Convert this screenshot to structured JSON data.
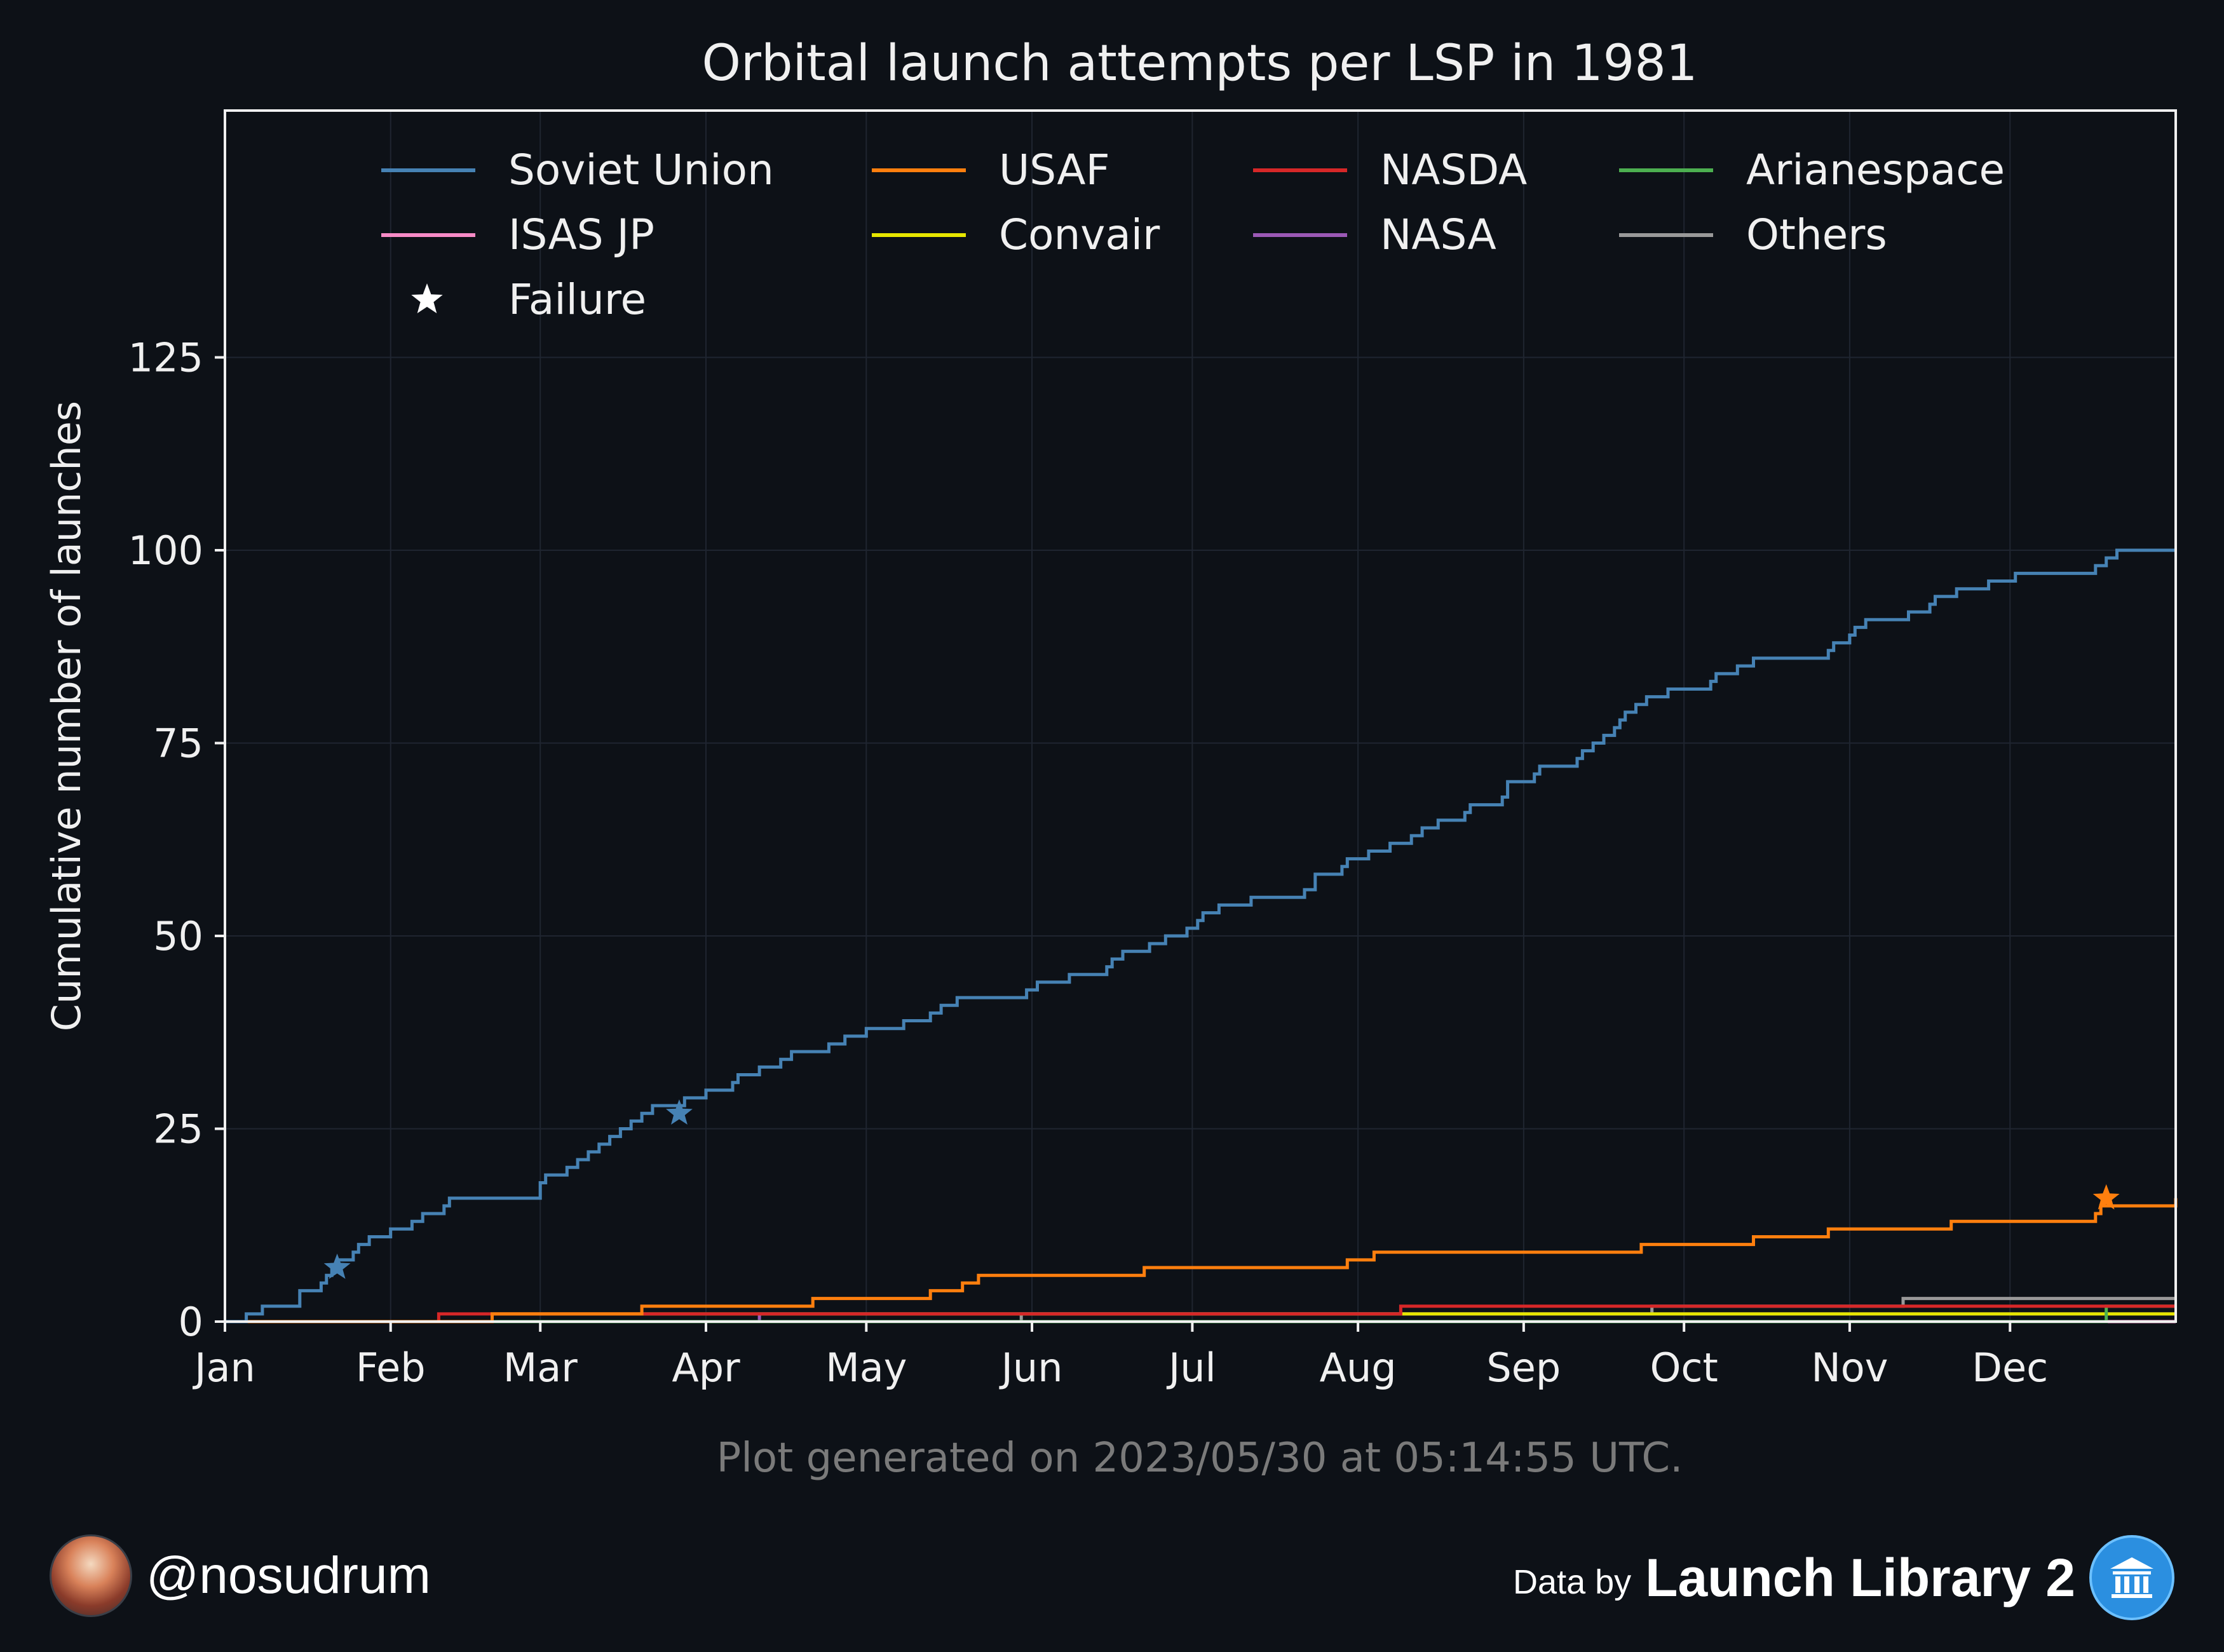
{
  "chart_data": {
    "type": "line",
    "title": "Orbital launch attempts per LSP in 1981",
    "xlabel": "",
    "ylabel": "Cumulative number of launches",
    "xlim": [
      0,
      365
    ],
    "ylim": [
      0,
      157
    ],
    "x_ticks": [
      {
        "day": 0,
        "label": "Jan"
      },
      {
        "day": 31,
        "label": "Feb"
      },
      {
        "day": 59,
        "label": "Mar"
      },
      {
        "day": 90,
        "label": "Apr"
      },
      {
        "day": 120,
        "label": "May"
      },
      {
        "day": 151,
        "label": "Jun"
      },
      {
        "day": 181,
        "label": "Jul"
      },
      {
        "day": 212,
        "label": "Aug"
      },
      {
        "day": 243,
        "label": "Sep"
      },
      {
        "day": 273,
        "label": "Oct"
      },
      {
        "day": 304,
        "label": "Nov"
      },
      {
        "day": 334,
        "label": "Dec"
      }
    ],
    "y_ticks": [
      0,
      25,
      50,
      75,
      100,
      125
    ],
    "grid": true,
    "legend_position": "top",
    "legend": [
      {
        "label": "Soviet Union",
        "color": "#4682b4"
      },
      {
        "label": "USAF",
        "color": "#ff7f0e"
      },
      {
        "label": "NASDA",
        "color": "#d62728"
      },
      {
        "label": "Arianespace",
        "color": "#4caf50"
      },
      {
        "label": "ISAS JP",
        "color": "#f78bc6"
      },
      {
        "label": "Convair",
        "color": "#e6e600"
      },
      {
        "label": "NASA",
        "color": "#9b59b6"
      },
      {
        "label": "Others",
        "color": "#999999"
      },
      {
        "label": "Failure",
        "color": "#ffffff",
        "marker": "star"
      }
    ],
    "series": [
      {
        "name": "Soviet Union",
        "color": "#4682b4",
        "x": [
          0,
          4,
          7,
          14,
          18,
          19,
          20,
          21,
          24,
          25,
          27,
          29,
          31,
          35,
          37,
          41,
          42,
          49,
          59,
          60,
          64,
          66,
          68,
          70,
          72,
          74,
          76,
          78,
          79,
          80,
          82,
          86,
          90,
          95,
          96,
          100,
          104,
          106,
          111,
          113,
          116,
          120,
          126,
          127,
          132,
          134,
          137,
          138,
          140,
          141,
          150,
          152,
          153,
          158,
          165,
          166,
          168,
          173,
          176,
          180,
          182,
          183,
          186,
          192,
          202,
          204,
          209,
          210,
          214,
          218,
          222,
          224,
          227,
          232,
          233,
          239,
          240,
          245,
          246,
          253,
          254,
          256,
          258,
          260,
          261,
          262,
          264,
          266,
          270,
          271,
          278,
          279,
          283,
          286,
          300,
          301,
          304,
          305,
          307,
          315,
          319,
          320,
          324,
          330,
          335,
          337,
          339,
          350,
          352,
          354,
          358,
          365
        ],
        "y": [
          0,
          1,
          2,
          4,
          5,
          6,
          7,
          8,
          9,
          10,
          11,
          11,
          12,
          13,
          14,
          15,
          16,
          16,
          18,
          19,
          20,
          21,
          22,
          23,
          24,
          25,
          26,
          27,
          27,
          28,
          28,
          29,
          30,
          31,
          32,
          33,
          34,
          35,
          35,
          36,
          37,
          38,
          38,
          39,
          40,
          41,
          42,
          42,
          42,
          42,
          43,
          44,
          44,
          45,
          46,
          47,
          48,
          49,
          50,
          51,
          52,
          53,
          54,
          55,
          56,
          58,
          59,
          60,
          61,
          62,
          63,
          64,
          65,
          66,
          67,
          68,
          70,
          71,
          72,
          73,
          74,
          75,
          76,
          77,
          78,
          79,
          80,
          81,
          82,
          82,
          83,
          84,
          85,
          86,
          87,
          88,
          89,
          90,
          91,
          92,
          93,
          94,
          95,
          96,
          97,
          97,
          97,
          98,
          99,
          100,
          100,
          100
        ],
        "failures": [
          {
            "x": 21,
            "y": 7
          },
          {
            "x": 85,
            "y": 27
          }
        ]
      },
      {
        "name": "USAF",
        "color": "#ff7f0e",
        "x": [
          0,
          50,
          73,
          74,
          78,
          110,
          132,
          138,
          141,
          172,
          200,
          210,
          215,
          240,
          265,
          280,
          286,
          300,
          305,
          323,
          350,
          351,
          365
        ],
        "y": [
          0,
          1,
          1,
          1,
          2,
          3,
          4,
          5,
          6,
          7,
          7,
          8,
          9,
          9,
          10,
          10,
          11,
          12,
          12,
          13,
          14,
          15,
          16
        ],
        "failures": [
          {
            "x": 352,
            "y": 16
          }
        ]
      },
      {
        "name": "NASDA",
        "color": "#d62728",
        "x": [
          0,
          40,
          220,
          365
        ],
        "y": [
          0,
          1,
          2,
          2
        ],
        "failures": []
      },
      {
        "name": "Arianespace",
        "color": "#4caf50",
        "x": [
          0,
          352,
          365
        ],
        "y": [
          0,
          2,
          2
        ],
        "failures": []
      },
      {
        "name": "ISAS JP",
        "color": "#f78bc6",
        "x": [
          0,
          365
        ],
        "y": [
          0,
          0
        ],
        "failures": []
      },
      {
        "name": "Convair",
        "color": "#e6e600",
        "x": [
          0,
          50,
          100,
          365
        ],
        "y": [
          0,
          1,
          1,
          1
        ],
        "failures": []
      },
      {
        "name": "NASA",
        "color": "#9b59b6",
        "x": [
          0,
          100,
          365
        ],
        "y": [
          0,
          1,
          1
        ],
        "failures": []
      },
      {
        "name": "Others",
        "color": "#999999",
        "x": [
          0,
          149,
          267,
          314,
          365
        ],
        "y": [
          0,
          1,
          2,
          3,
          3
        ],
        "failures": []
      }
    ]
  },
  "footer": {
    "generated": "Plot generated on 2023/05/30 at 05:14:55 UTC.",
    "handle": "@nosudrum",
    "data_by": "Data by",
    "source": "Launch Library 2"
  },
  "colors": {
    "background": "#0d1117",
    "text": "#f0f0f0",
    "muted": "#7a7a7a",
    "grid": "#1f2530"
  },
  "icons": [
    "avatar-icon",
    "building-icon"
  ]
}
